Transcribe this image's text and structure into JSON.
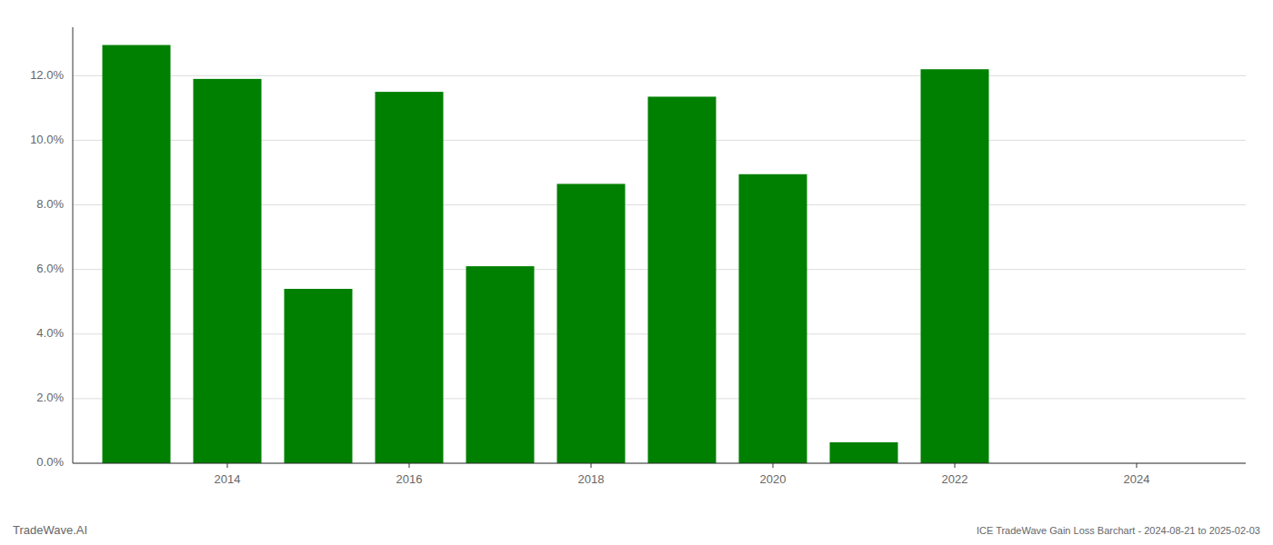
{
  "chart_data": {
    "type": "bar",
    "title": "ICE TradeWave Gain Loss Barchart - 2024-08-21 to 2025-02-03",
    "annotations": [
      "TradeWave.AI"
    ],
    "x": [
      2013,
      2014,
      2015,
      2016,
      2017,
      2018,
      2019,
      2020,
      2021,
      2022
    ],
    "values": [
      0.1295,
      0.119,
      0.054,
      0.115,
      0.061,
      0.0865,
      0.1135,
      0.0895,
      0.0065,
      0.122
    ],
    "color": "#008000",
    "xlim": [
      2012.3,
      2025.2
    ],
    "xticks": [
      2014,
      2016,
      2018,
      2020,
      2022,
      2024
    ],
    "ylim": [
      0.0,
      0.135
    ],
    "yticks": [
      {
        "value": 0.0,
        "label": "0.0%"
      },
      {
        "value": 0.02,
        "label": "2.0%"
      },
      {
        "value": 0.04,
        "label": "4.0%"
      },
      {
        "value": 0.06,
        "label": "6.0%"
      },
      {
        "value": 0.08,
        "label": "8.0%"
      },
      {
        "value": 0.1,
        "label": "10.0%"
      },
      {
        "value": 0.12,
        "label": "12.0%"
      }
    ],
    "grid": true
  }
}
